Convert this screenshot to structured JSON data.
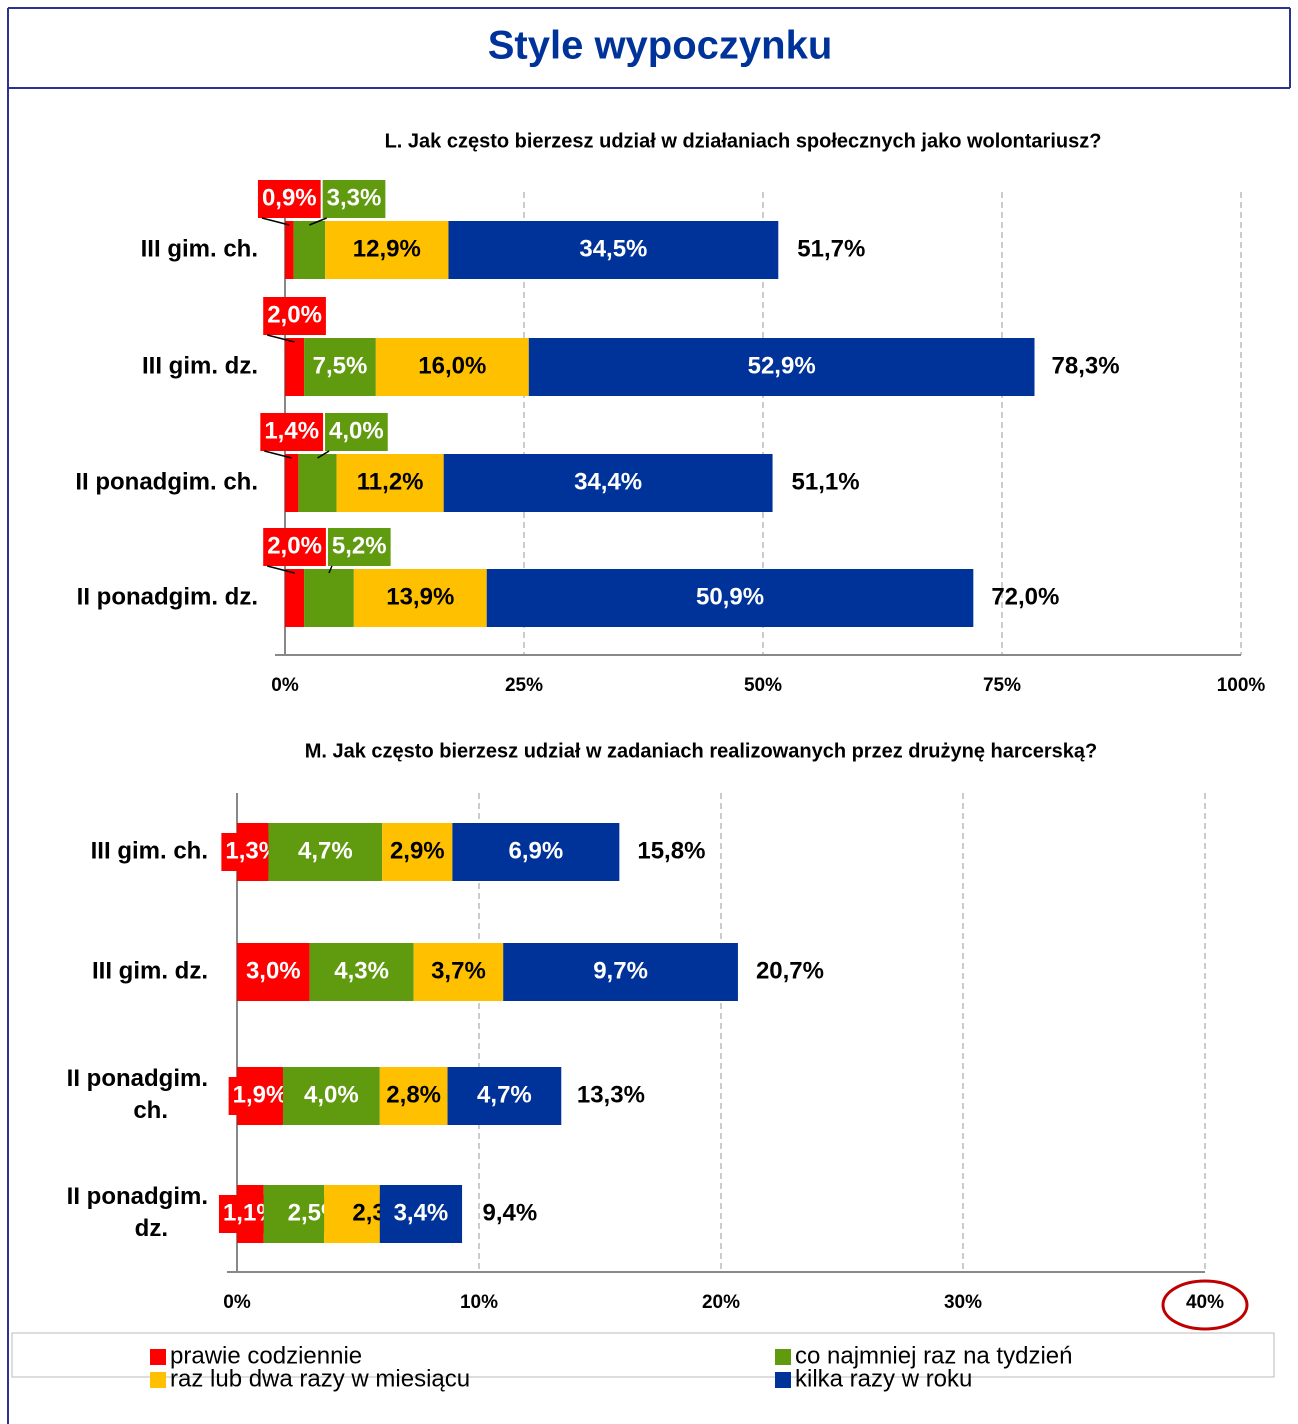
{
  "title": "Style wypoczynku",
  "chart_data": [
    {
      "type": "bar",
      "orientation": "horizontal",
      "stacked": true,
      "title": "L. Jak często bierzesz udział w działaniach społecznych jako wolontariusz?",
      "categories": [
        "III gim. ch.",
        "III gim. dz.",
        "II ponadgim. ch.",
        "II ponadgim. dz."
      ],
      "series": [
        {
          "name": "prawie codziennie",
          "color": "#ff0000",
          "values": [
            0.9,
            2.0,
            1.4,
            2.0
          ],
          "value_labels": [
            "0,9%",
            "2,0%",
            "1,4%",
            "2,0%"
          ]
        },
        {
          "name": "co najmniej raz na tydzień",
          "color": "#5f9a0f",
          "values": [
            3.3,
            7.5,
            4.0,
            5.2
          ],
          "value_labels": [
            "3,3%",
            "7,5%",
            "4,0%",
            "5,2%"
          ]
        },
        {
          "name": "raz lub dwa razy w miesiącu",
          "color": "#ffc000",
          "values": [
            12.9,
            16.0,
            11.2,
            13.9
          ],
          "value_labels": [
            "12,9%",
            "16,0%",
            "11,2%",
            "13,9%"
          ]
        },
        {
          "name": "kilka razy w roku",
          "color": "#003399",
          "values": [
            34.5,
            52.9,
            34.4,
            50.9
          ],
          "value_labels": [
            "34,5%",
            "52,9%",
            "34,4%",
            "50,9%"
          ]
        }
      ],
      "totals": [
        51.7,
        78.3,
        51.1,
        72.0
      ],
      "total_labels": [
        "51,7%",
        "78,3%",
        "51,1%",
        "72,0%"
      ],
      "xlim": [
        0,
        100
      ],
      "xticks": [
        {
          "value": 0,
          "label": "0%"
        },
        {
          "value": 25,
          "label": "25%"
        },
        {
          "value": 50,
          "label": "50%"
        },
        {
          "value": 75,
          "label": "75%"
        },
        {
          "value": 100,
          "label": "100%"
        }
      ],
      "grid": true
    },
    {
      "type": "bar",
      "orientation": "horizontal",
      "stacked": true,
      "title": "M. Jak często bierzesz udział w zadaniach realizowanych przez drużynę harcerską?",
      "categories": [
        "III gim. ch.",
        "III gim. dz.",
        "II ponadgim. ch.",
        "II ponadgim. dz."
      ],
      "series": [
        {
          "color": "#ff0000",
          "values": [
            1.3,
            3.0,
            1.9,
            1.1
          ],
          "value_labels": [
            "1,3%",
            "3,0%",
            "1,9%",
            "1,1%"
          ]
        },
        {
          "color": "#5f9a0f",
          "values": [
            4.7,
            4.3,
            4.0,
            2.5
          ],
          "value_labels": [
            "4,7%",
            "4,3%",
            "4,0%",
            "2,5%"
          ]
        },
        {
          "color": "#ffc000",
          "values": [
            2.9,
            3.7,
            2.8,
            2.3
          ],
          "value_labels": [
            "2,9%",
            "3,7%",
            "2,8%",
            "2,3%"
          ]
        },
        {
          "color": "#003399",
          "values": [
            6.9,
            9.7,
            4.7,
            3.4
          ],
          "value_labels": [
            "6,9%",
            "9,7%",
            "4,7%",
            "3,4%"
          ]
        }
      ],
      "totals": [
        15.8,
        20.7,
        13.3,
        9.4
      ],
      "total_labels": [
        "15,8%",
        "20,7%",
        "13,3%",
        "9,4%"
      ],
      "xlim": [
        0,
        40
      ],
      "xticks": [
        {
          "value": 0,
          "label": "0%"
        },
        {
          "value": 10,
          "label": "10%"
        },
        {
          "value": 20,
          "label": "20%"
        },
        {
          "value": 30,
          "label": "30%"
        },
        {
          "value": 40,
          "label": "40%"
        }
      ],
      "grid": true
    }
  ]
}
